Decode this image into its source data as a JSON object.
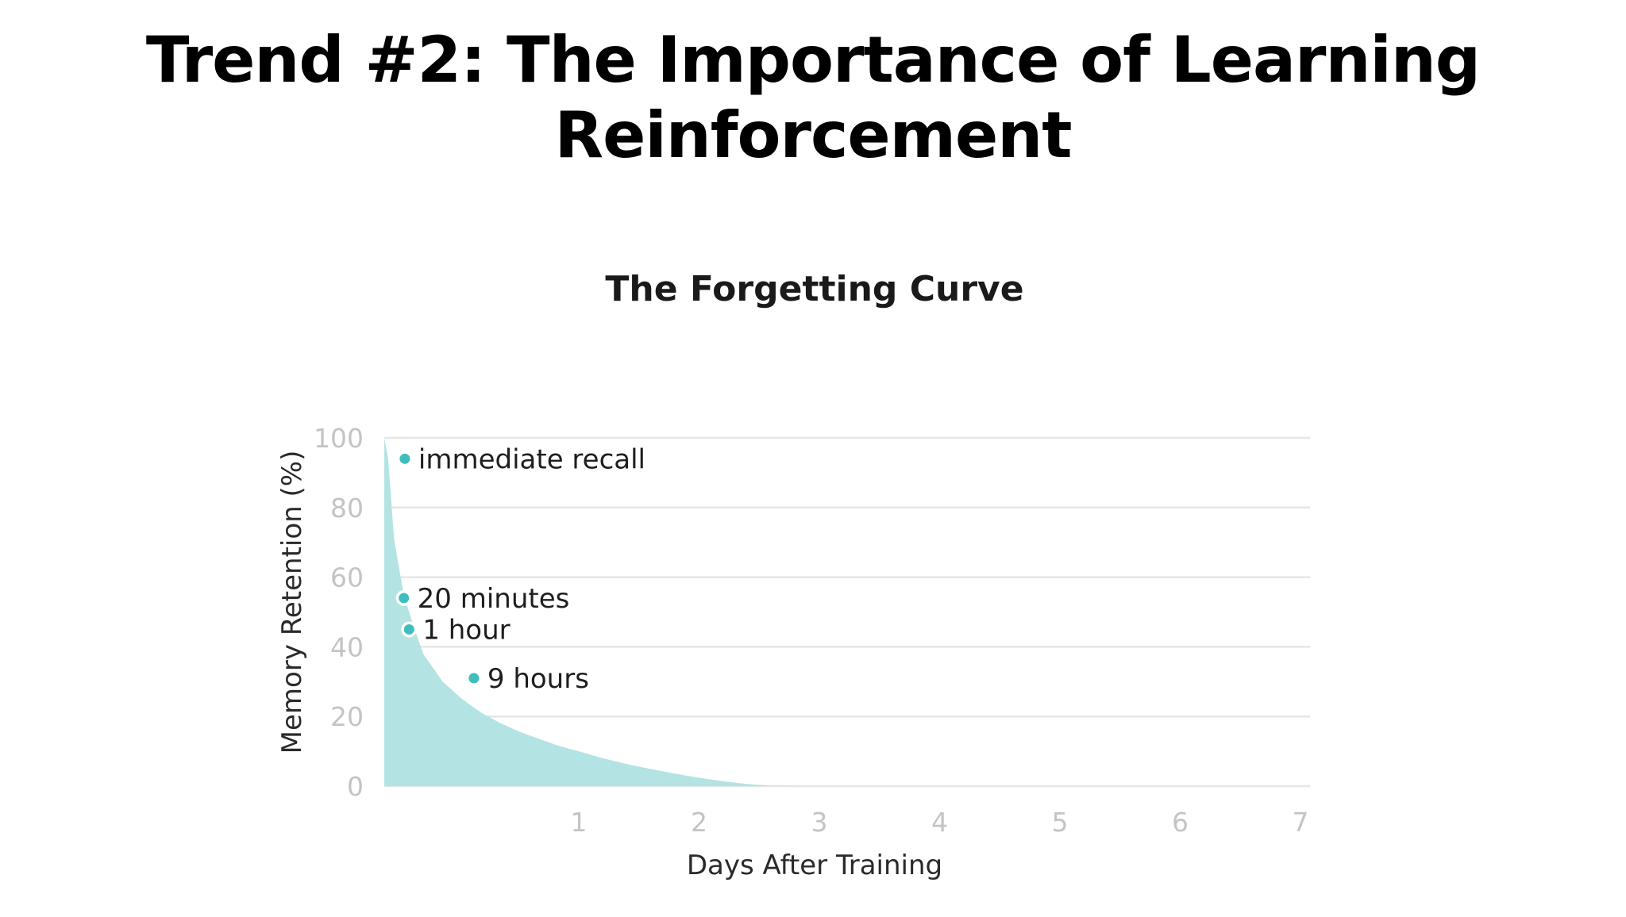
{
  "slide": {
    "title_line1": "Trend #2: The Importance of Learning",
    "title_line2": "Reinforcement"
  },
  "chart_data": {
    "type": "area",
    "title": "The Forgetting Curve",
    "xlabel": "Days After Training",
    "ylabel": "Memory Retention (%)",
    "xlim": [
      0,
      7
    ],
    "ylim": [
      0,
      100
    ],
    "x_ticks": [
      1,
      2,
      3,
      4,
      5,
      6,
      7
    ],
    "y_ticks": [
      0,
      20,
      40,
      60,
      80,
      100
    ],
    "grid": true,
    "series": [
      {
        "color": "#b3e3e3",
        "x": [
          0,
          0.02,
          0.05,
          0.1,
          0.15,
          0.2,
          0.3,
          0.4,
          0.5,
          0.6,
          0.7,
          0.8,
          0.9,
          1.0,
          1.2,
          1.4,
          1.6,
          1.8,
          2.0,
          2.2,
          2.4,
          2.6,
          2.8,
          3.0,
          4,
          5,
          6,
          7
        ],
        "y": [
          100,
          94,
          71,
          55,
          46,
          38,
          30,
          25,
          21,
          18,
          15.5,
          13.5,
          11.5,
          10,
          8,
          6.3,
          4.9,
          3.6,
          2.4,
          1.4,
          0.6,
          0.1,
          0,
          0,
          0,
          0,
          0,
          0
        ]
      }
    ],
    "annotations": [
      {
        "label": "immediate recall",
        "x": 0.02,
        "y": 94
      },
      {
        "label": "20 minutes",
        "x": 0.015,
        "y": 54
      },
      {
        "label": "1 hour",
        "x": 0.042,
        "y": 45
      },
      {
        "label": "9 hours",
        "x": 0.375,
        "y": 31
      }
    ],
    "colors": {
      "area": "#b3e3e3",
      "marker": "#3fbdbd",
      "grid": "#e6e6e6",
      "tick": "#c4c4c4",
      "axis_label": "#2a2a2a",
      "annotation_text": "#1e1e1e"
    }
  }
}
